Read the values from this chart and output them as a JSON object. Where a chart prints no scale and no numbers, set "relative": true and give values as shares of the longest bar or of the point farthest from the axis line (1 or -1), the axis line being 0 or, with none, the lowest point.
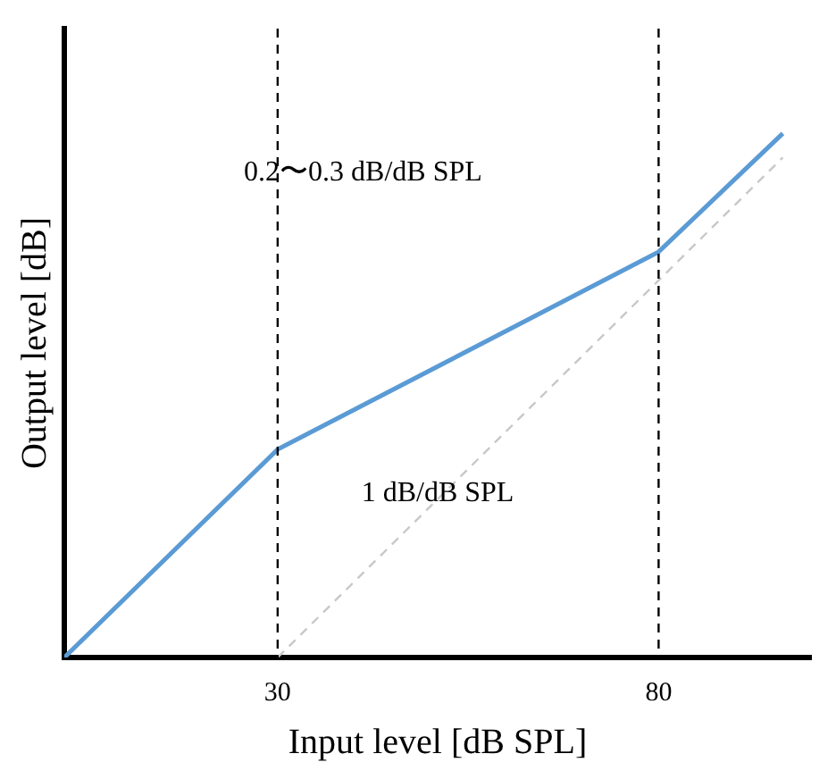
{
  "chart_data": {
    "type": "line",
    "xlabel": "Input level [dB SPL]",
    "ylabel": "Output level [dB]",
    "relative": true,
    "xlim": [
      2,
      100
    ],
    "xticks": [
      30,
      80
    ],
    "grid": false,
    "legend": false,
    "marker": "none",
    "series": [
      {
        "color": "#5b9bd5",
        "x": [
          2,
          30,
          80,
          96.3
        ],
        "values": [
          0,
          0.397,
          0.774,
          1
        ]
      },
      {
        "color": "#c8c8c8",
        "line_style": "dashed",
        "x": [
          30,
          96.3
        ],
        "values": [
          0,
          0.954
        ]
      }
    ],
    "ref_lines": [
      {
        "axis": "x",
        "value": 30,
        "color": "#000000",
        "line_style": "dashed"
      },
      {
        "axis": "x",
        "value": 80,
        "color": "#000000",
        "line_style": "dashed"
      }
    ],
    "annotations": [
      "0.2〜0.3 dB/dB SPL",
      "1 dB/dB SPL"
    ]
  }
}
